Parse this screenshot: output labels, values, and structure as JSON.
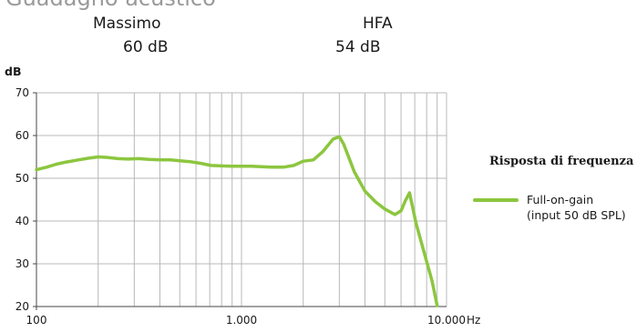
{
  "header": {
    "title_partial": "Guadagno acustico",
    "stats": [
      {
        "label": "Massimo",
        "value": "60 dB"
      },
      {
        "label": "HFA",
        "value": "54 dB"
      }
    ]
  },
  "legend": {
    "title": "Risposta di frequenza",
    "entry_line1": "Full-on-gain",
    "entry_line2": "(input 50 dB SPL)"
  },
  "colors": {
    "series": "#8cc63f",
    "grid": "#b8b8b8",
    "axis": "#444444"
  },
  "chart_data": {
    "type": "line",
    "title": "Risposta di frequenza",
    "ylabel": "dB",
    "xlabel": "Hz",
    "x_scale": "log",
    "xlim": [
      100,
      10000
    ],
    "ylim": [
      20,
      70
    ],
    "x_ticks": [
      100,
      1000,
      10000
    ],
    "x_tick_labels": [
      "100",
      "1.000",
      "10.000"
    ],
    "y_ticks": [
      20,
      30,
      40,
      50,
      60,
      70
    ],
    "y_tick_labels": [
      "20",
      "30",
      "40",
      "50",
      "60",
      "70"
    ],
    "grid": true,
    "legend_position": "right",
    "series": [
      {
        "name": "Full-on-gain (input 50 dB SPL)",
        "color": "#8cc63f",
        "x": [
          100,
          112,
          125,
          140,
          160,
          180,
          200,
          220,
          250,
          280,
          315,
          355,
          400,
          450,
          500,
          560,
          630,
          710,
          800,
          900,
          1000,
          1120,
          1250,
          1400,
          1600,
          1800,
          2000,
          2240,
          2500,
          2800,
          3000,
          3150,
          3550,
          4000,
          4500,
          5000,
          5600,
          6000,
          6300,
          6600,
          7100,
          8000,
          8500,
          9000
        ],
        "y": [
          52,
          52.6,
          53.3,
          53.8,
          54.3,
          54.7,
          55,
          54.9,
          54.6,
          54.5,
          54.6,
          54.4,
          54.3,
          54.3,
          54.1,
          53.9,
          53.5,
          53.0,
          52.9,
          52.8,
          52.8,
          52.8,
          52.7,
          52.6,
          52.6,
          53.0,
          54.0,
          54.3,
          56.3,
          59.2,
          59.7,
          58.0,
          51.5,
          47.0,
          44.5,
          42.8,
          41.5,
          42.4,
          44.8,
          46.6,
          39.5,
          30.5,
          26.0,
          20.2
        ]
      }
    ]
  }
}
